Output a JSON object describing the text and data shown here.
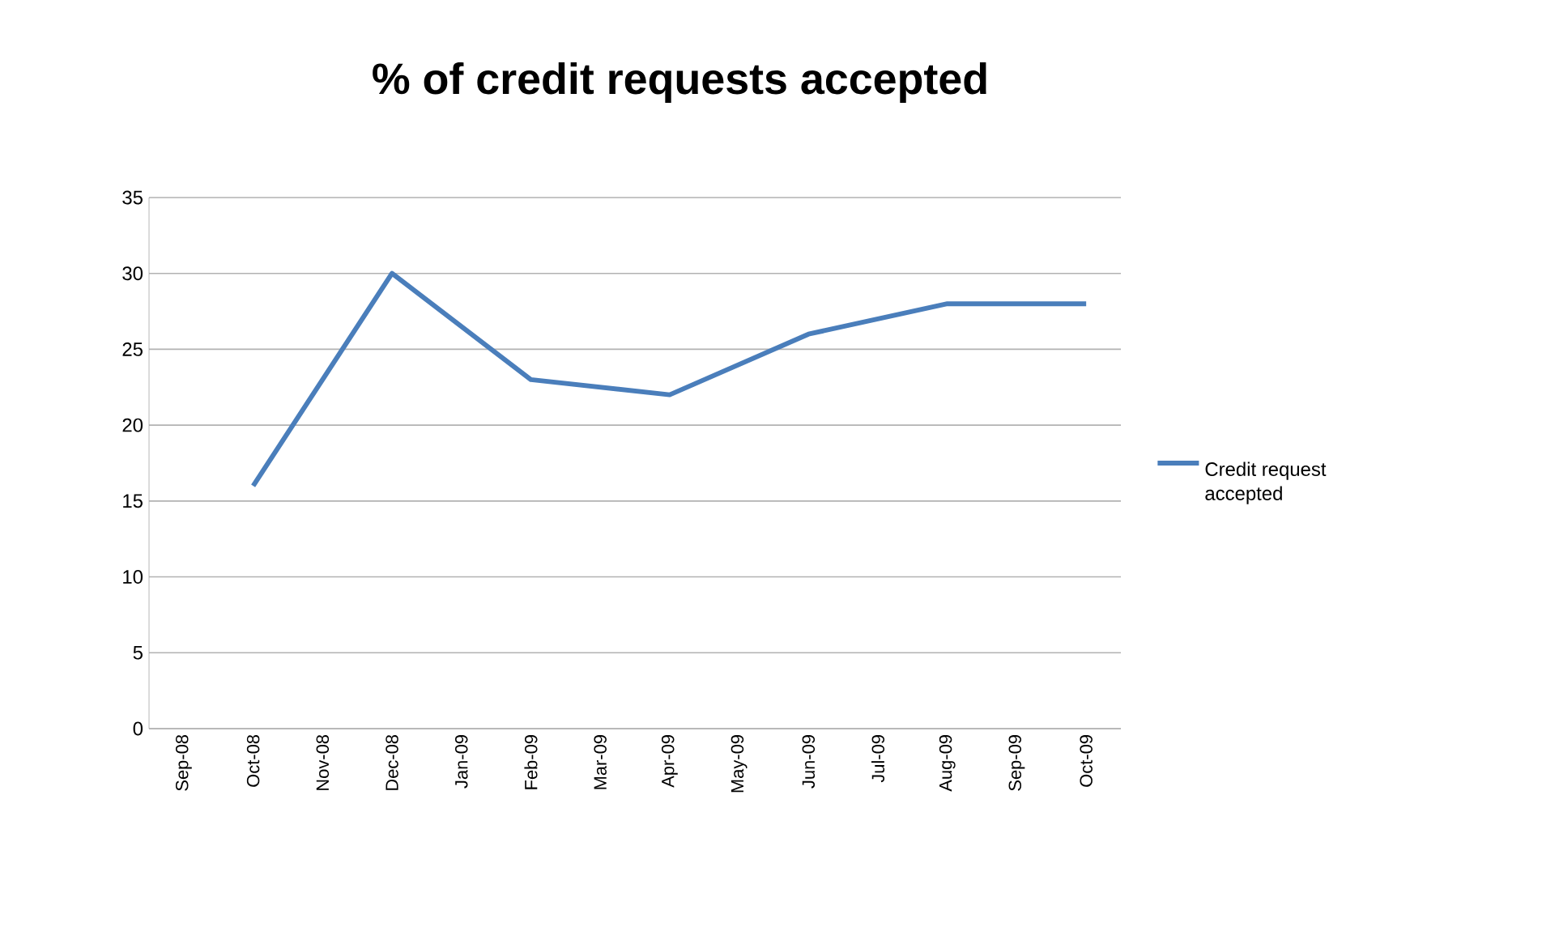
{
  "chart_data": {
    "type": "line",
    "title": "% of credit requests accepted",
    "x": [
      "2008-10",
      "2008-12",
      "2009-02",
      "2009-04",
      "2009-06",
      "2009-08",
      "2009-10"
    ],
    "series": [
      {
        "name": "Credit request accepted",
        "color": "#4a7ebb",
        "values": [
          16,
          30,
          23,
          22,
          26,
          28,
          28
        ]
      }
    ],
    "xlim": [
      "2008-08-16",
      "2009-10-16"
    ],
    "xticks": [
      {
        "value": "2008-09",
        "label": "Sep-08"
      },
      {
        "value": "2008-10",
        "label": "Oct-08"
      },
      {
        "value": "2008-11",
        "label": "Nov-08"
      },
      {
        "value": "2008-12",
        "label": "Dec-08"
      },
      {
        "value": "2009-01",
        "label": "Jan-09"
      },
      {
        "value": "2009-02",
        "label": "Feb-09"
      },
      {
        "value": "2009-03",
        "label": "Mar-09"
      },
      {
        "value": "2009-04",
        "label": "Apr-09"
      },
      {
        "value": "2009-05",
        "label": "May-09"
      },
      {
        "value": "2009-06",
        "label": "Jun-09"
      },
      {
        "value": "2009-07",
        "label": "Jul-09"
      },
      {
        "value": "2009-08",
        "label": "Aug-09"
      },
      {
        "value": "2009-09",
        "label": "Sep-09"
      },
      {
        "value": "2009-10",
        "label": "Oct-09"
      }
    ],
    "ylim": [
      0,
      35
    ],
    "yticks": [
      0,
      5,
      10,
      15,
      20,
      25,
      30,
      35
    ],
    "grid": "y",
    "legend": "right",
    "marker": "none",
    "line_style": "solid"
  }
}
